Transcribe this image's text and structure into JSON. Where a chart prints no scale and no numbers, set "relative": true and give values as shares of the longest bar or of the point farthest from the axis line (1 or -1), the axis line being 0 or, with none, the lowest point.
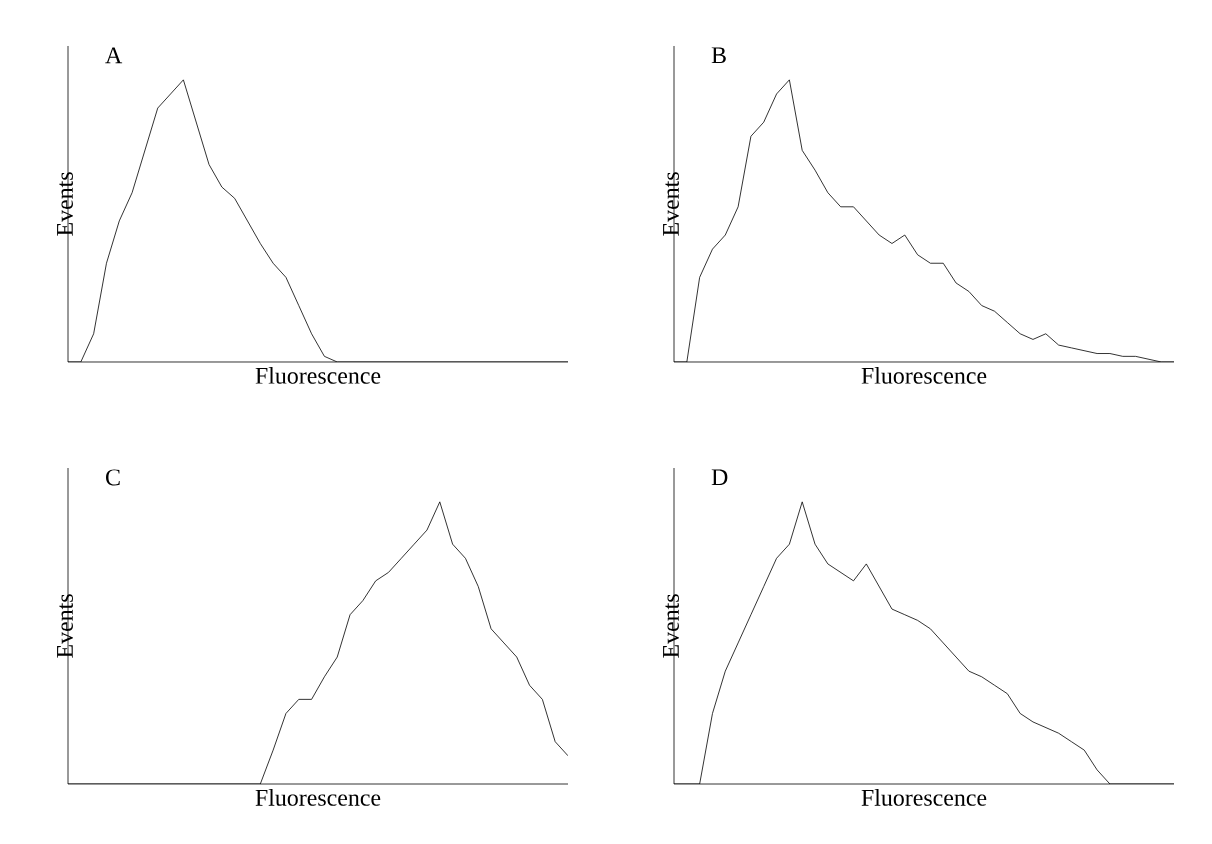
{
  "chart_data": [
    {
      "type": "line",
      "title": "A",
      "xlabel": "Fluorescence",
      "ylabel": "Events",
      "relative": true,
      "marker": "none",
      "line_style": "solid",
      "categories": [
        null,
        null,
        null,
        null,
        null,
        null,
        null,
        null,
        null,
        null,
        null,
        null,
        null,
        null,
        null,
        null,
        null,
        null,
        null,
        null,
        null,
        null,
        null,
        null,
        null,
        null,
        null,
        null,
        null,
        null,
        null,
        null,
        null,
        null,
        null,
        null,
        null,
        null,
        null,
        null
      ],
      "series": [
        {
          "color": "#000000",
          "values": [
            0,
            0,
            0.1,
            0.35,
            0.5,
            0.6,
            0.75,
            0.9,
            0.95,
            1.0,
            0.85,
            0.7,
            0.62,
            0.58,
            0.5,
            0.42,
            0.35,
            0.3,
            0.2,
            0.1,
            0.02,
            0,
            0,
            0,
            0,
            0,
            0,
            0,
            0,
            0,
            0,
            0,
            0,
            0,
            0,
            0,
            0,
            0,
            0,
            0
          ]
        }
      ]
    },
    {
      "type": "line",
      "title": "B",
      "xlabel": "Fluorescence",
      "ylabel": "Events",
      "relative": true,
      "marker": "none",
      "line_style": "solid",
      "categories": [
        null,
        null,
        null,
        null,
        null,
        null,
        null,
        null,
        null,
        null,
        null,
        null,
        null,
        null,
        null,
        null,
        null,
        null,
        null,
        null,
        null,
        null,
        null,
        null,
        null,
        null,
        null,
        null,
        null,
        null,
        null,
        null,
        null,
        null,
        null,
        null,
        null,
        null,
        null,
        null
      ],
      "series": [
        {
          "color": "#000000",
          "values": [
            0,
            0,
            0.3,
            0.4,
            0.45,
            0.55,
            0.8,
            0.85,
            0.95,
            1.0,
            0.75,
            0.68,
            0.6,
            0.55,
            0.55,
            0.5,
            0.45,
            0.42,
            0.45,
            0.38,
            0.35,
            0.35,
            0.28,
            0.25,
            0.2,
            0.18,
            0.14,
            0.1,
            0.08,
            0.1,
            0.06,
            0.05,
            0.04,
            0.03,
            0.03,
            0.02,
            0.02,
            0.01,
            0,
            0
          ]
        }
      ]
    },
    {
      "type": "line",
      "title": "C",
      "xlabel": "Fluorescence",
      "ylabel": "Events",
      "relative": true,
      "marker": "none",
      "line_style": "solid",
      "categories": [
        null,
        null,
        null,
        null,
        null,
        null,
        null,
        null,
        null,
        null,
        null,
        null,
        null,
        null,
        null,
        null,
        null,
        null,
        null,
        null,
        null,
        null,
        null,
        null,
        null,
        null,
        null,
        null,
        null,
        null,
        null,
        null,
        null,
        null,
        null,
        null,
        null,
        null,
        null,
        null
      ],
      "series": [
        {
          "color": "#000000",
          "values": [
            0,
            0,
            0,
            0,
            0,
            0,
            0,
            0,
            0,
            0,
            0,
            0,
            0,
            0,
            0,
            0,
            0.12,
            0.25,
            0.3,
            0.3,
            0.38,
            0.45,
            0.6,
            0.65,
            0.72,
            0.75,
            0.8,
            0.85,
            0.9,
            1.0,
            0.85,
            0.8,
            0.7,
            0.55,
            0.5,
            0.45,
            0.35,
            0.3,
            0.15,
            0.1
          ]
        }
      ]
    },
    {
      "type": "line",
      "title": "D",
      "xlabel": "Fluorescence",
      "ylabel": "Events",
      "relative": true,
      "marker": "none",
      "line_style": "solid",
      "categories": [
        null,
        null,
        null,
        null,
        null,
        null,
        null,
        null,
        null,
        null,
        null,
        null,
        null,
        null,
        null,
        null,
        null,
        null,
        null,
        null,
        null,
        null,
        null,
        null,
        null,
        null,
        null,
        null,
        null,
        null,
        null,
        null,
        null,
        null,
        null,
        null,
        null,
        null,
        null,
        null
      ],
      "series": [
        {
          "color": "#000000",
          "values": [
            0,
            0,
            0,
            0.25,
            0.4,
            0.5,
            0.6,
            0.7,
            0.8,
            0.85,
            1.0,
            0.85,
            0.78,
            0.75,
            0.72,
            0.78,
            0.7,
            0.62,
            0.6,
            0.58,
            0.55,
            0.5,
            0.45,
            0.4,
            0.38,
            0.35,
            0.32,
            0.25,
            0.22,
            0.2,
            0.18,
            0.15,
            0.12,
            0.05,
            0,
            0,
            0,
            0,
            0,
            0
          ]
        }
      ]
    }
  ]
}
